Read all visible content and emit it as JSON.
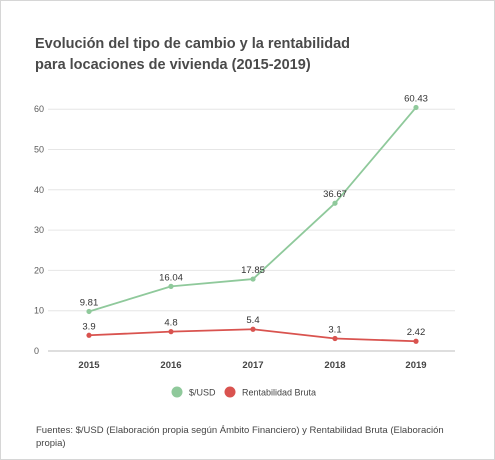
{
  "chart_data": {
    "type": "line",
    "title_line1": "Evolución del tipo de cambio y la rentabilidad",
    "title_line2": "para locaciones de vivienda (2015-2019)",
    "categories": [
      "2015",
      "2016",
      "2017",
      "2018",
      "2019"
    ],
    "y_ticks": [
      "0",
      "10",
      "20",
      "30",
      "40",
      "50",
      "60"
    ],
    "ylim": [
      0,
      65
    ],
    "grid": true,
    "legend_position": "bottom",
    "series": [
      {
        "name": "$/USD",
        "color": "#8fc99b",
        "values": [
          9.81,
          16.04,
          17.85,
          36.67,
          60.43
        ],
        "labels": [
          "9.81",
          "16.04",
          "17.85",
          "36.67",
          "60.43"
        ]
      },
      {
        "name": "Rentabilidad Bruta",
        "color": "#d9534f",
        "values": [
          3.9,
          4.8,
          5.4,
          3.1,
          2.42
        ],
        "labels": [
          "3.9",
          "4.8",
          "5.4",
          "3.1",
          "2.42"
        ]
      }
    ]
  },
  "footer": {
    "source_line1": "Fuentes: $/USD (Elaboración propia según Ámbito Financiero) y Rentabilidad Bruta (Elaboración",
    "source_line2": "propia)"
  }
}
